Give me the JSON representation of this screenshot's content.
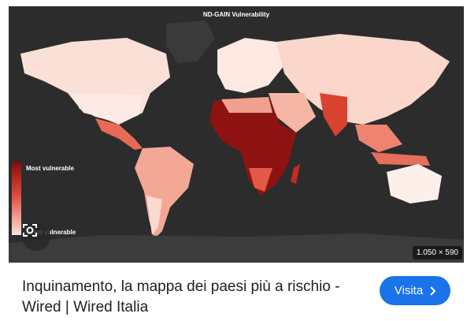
{
  "image": {
    "title": "ND-GAIN Vulnerability",
    "legend_high": "Most vulnerable",
    "legend_low": "Least vulnerable",
    "size_badge": "1.050 × 590"
  },
  "result": {
    "title": "Inquinamento, la mappa dei paesi più a rischio - Wired | Wired Italia",
    "button": "Visita"
  }
}
